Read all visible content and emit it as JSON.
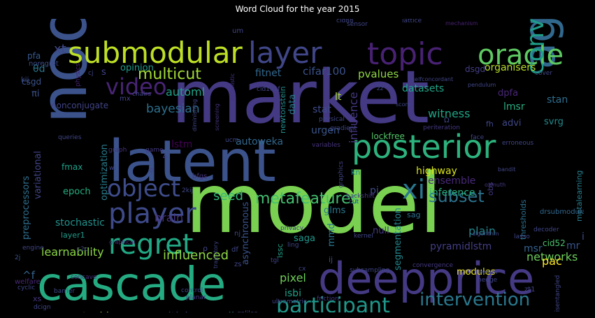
{
  "chart_data": {
    "type": "wordcloud",
    "title": "Word Cloud for the year 2015",
    "words": [
      {
        "text": "model",
        "color": "#7ad151"
      },
      {
        "text": "market",
        "color": "#443983"
      },
      {
        "text": "node",
        "color": "#3b528b"
      },
      {
        "text": "latent",
        "color": "#3b528b"
      },
      {
        "text": "cascade",
        "color": "#25ab82"
      },
      {
        "text": "deepprice",
        "color": "#443983"
      },
      {
        "text": "agent",
        "color": "#31688e"
      },
      {
        "text": "posterior",
        "color": "#2db27d"
      },
      {
        "text": "submodular",
        "color": "#bddf26"
      },
      {
        "text": "layer",
        "color": "#404688"
      },
      {
        "text": "topic",
        "color": "#482173"
      },
      {
        "text": "oracle",
        "color": "#5ec962"
      },
      {
        "text": "player",
        "color": "#3e4a89"
      },
      {
        "text": "regret",
        "color": "#22a884"
      },
      {
        "text": "object",
        "color": "#3e4c8a"
      },
      {
        "text": "video",
        "color": "#482475"
      },
      {
        "text": "xi",
        "color": "#2a768e"
      },
      {
        "text": "convex",
        "color": "#1f9e89"
      },
      {
        "text": "multicut",
        "color": "#a2da37"
      },
      {
        "text": "participant",
        "color": "#1f988b"
      },
      {
        "text": "intervention",
        "color": "#2a788e"
      },
      {
        "text": "metafeatures",
        "color": "#44bf70"
      },
      {
        "text": "subset",
        "color": "#2c728e"
      },
      {
        "text": "influenced",
        "color": "#8fd744"
      },
      {
        "text": "bayesian",
        "color": "#2c718e"
      },
      {
        "text": "automl",
        "color": "#1fa287"
      },
      {
        "text": "mdlstm",
        "color": "#26828e"
      },
      {
        "text": "criticism",
        "color": "#3b528b"
      },
      {
        "text": "autosklearn",
        "color": "#a5db36"
      },
      {
        "text": "learnability",
        "color": "#8bd646"
      },
      {
        "text": "networks",
        "color": "#6ccd5a"
      },
      {
        "text": "lstm",
        "color": "#440154"
      },
      {
        "text": "autoweka",
        "color": "#31688e"
      },
      {
        "text": "seed",
        "color": "#35b779"
      },
      {
        "text": "pixel",
        "color": "#6ece58"
      },
      {
        "text": "brain",
        "color": "#46337e"
      },
      {
        "text": "stochastic",
        "color": "#21918c"
      },
      {
        "text": "witness",
        "color": "#20a486"
      },
      {
        "text": "influence",
        "color": "#453781"
      },
      {
        "text": "datasets",
        "color": "#20a386"
      },
      {
        "text": "pvalues",
        "color": "#8fd744"
      },
      {
        "text": "organisers",
        "color": "#b8de29"
      },
      {
        "text": "cifar100",
        "color": "#3b528b"
      },
      {
        "text": "fitnet",
        "color": "#31688e"
      },
      {
        "text": "opinion",
        "color": "#1f9a8a"
      },
      {
        "text": "highway",
        "color": "#d8e219"
      },
      {
        "text": "ensemble",
        "color": "#482979"
      },
      {
        "text": "inference",
        "color": "#28ae80"
      },
      {
        "text": "plain",
        "color": "#25858e"
      },
      {
        "text": "pyramidlstm",
        "color": "#433e85"
      },
      {
        "text": "msr",
        "color": "#34618d"
      },
      {
        "text": "pac",
        "color": "#fde725"
      },
      {
        "text": "glms",
        "color": "#2a788e"
      },
      {
        "text": "saga",
        "color": "#1f968b"
      },
      {
        "text": "isbi",
        "color": "#1fa188"
      },
      {
        "text": "segmentation",
        "color": "#24878e"
      },
      {
        "text": "stat",
        "color": "#3e4c8a"
      },
      {
        "text": "urgen",
        "color": "#39568c"
      },
      {
        "text": "lmsr",
        "color": "#26ad81"
      },
      {
        "text": "stan",
        "color": "#2e6f8e"
      },
      {
        "text": "dpfa",
        "color": "#482677"
      },
      {
        "text": "advi",
        "color": "#3f4788"
      },
      {
        "text": "svrg",
        "color": "#238a8d"
      },
      {
        "text": "transform",
        "color": "#2d708e"
      },
      {
        "text": "metalearning",
        "color": "#277f8e"
      },
      {
        "text": "variational",
        "color": "#414487"
      },
      {
        "text": "preprocessors",
        "color": "#2e6e8e"
      },
      {
        "text": "optimization",
        "color": "#287d8e"
      },
      {
        "text": "epoch",
        "color": "#26ad81"
      },
      {
        "text": "fmax",
        "color": "#1fa088"
      },
      {
        "text": "asynchronous",
        "color": "#3a538b"
      },
      {
        "text": "newtonstein",
        "color": "#21908d"
      },
      {
        "text": "lockfree",
        "color": "#52c569"
      },
      {
        "text": "mmd",
        "color": "#2a768e"
      },
      {
        "text": "interactive",
        "color": "#3b528b"
      },
      {
        "text": "modules",
        "color": "#e5e419"
      },
      {
        "text": "thresholds",
        "color": "#2d708e"
      },
      {
        "text": "drsubmodular",
        "color": "#31688e"
      },
      {
        "text": "cid52",
        "color": "#4ac16d"
      },
      {
        "text": "layer1",
        "color": "#1e9b8a"
      },
      {
        "text": "null",
        "color": "#443983"
      },
      {
        "text": "pi",
        "color": "#3e4a89"
      },
      {
        "text": "fh",
        "color": "#3f4889"
      },
      {
        "text": "lt",
        "color": "#a8db34"
      },
      {
        "text": "xt",
        "color": "#3f4889"
      },
      {
        "text": "data",
        "color": "#2a788e"
      },
      {
        "text": "kn",
        "color": "#238a8d"
      },
      {
        "text": "ic",
        "color": "#3e4c8a"
      },
      {
        "text": "mr",
        "color": "#3a548c"
      },
      {
        "text": "obs",
        "color": "#443983"
      },
      {
        "text": "sag",
        "color": "#2d708e"
      },
      {
        "text": "issc",
        "color": "#1fa088"
      },
      {
        "text": "dsgd",
        "color": "#433e85"
      },
      {
        "text": "pfa",
        "color": "#38598c"
      },
      {
        "text": "csgd",
        "color": "#3a538b"
      },
      {
        "text": "noregret",
        "color": "#3e4c8a"
      },
      {
        "text": "nonconjugate",
        "color": "#414487"
      },
      {
        "text": "θd",
        "color": "#2a768e"
      },
      {
        "text": "πi",
        "color": "#3b528b"
      },
      {
        "text": "^f",
        "color": "#33638d"
      },
      {
        "text": "welfare",
        "color": "#482878"
      },
      {
        "text": "cyclic",
        "color": "#3f4889"
      },
      {
        "text": "xs",
        "color": "#453781"
      },
      {
        "text": "dcign",
        "color": "#404688"
      },
      {
        "text": "dpfm",
        "color": "#38598c"
      },
      {
        "text": "barrier",
        "color": "#3e4a89"
      },
      {
        "text": "concave",
        "color": "#472f7d"
      },
      {
        "text": "engine",
        "color": "#404688"
      },
      {
        "text": "2j",
        "color": "#3b528b"
      },
      {
        "text": "c2c",
        "color": "#404688"
      },
      {
        "text": "kij",
        "color": "#3e4c8a"
      },
      {
        "text": "cj",
        "color": "#414487"
      },
      {
        "text": "s",
        "color": "#404688"
      },
      {
        "text": "physics",
        "color": "#482475"
      },
      {
        "text": "queries",
        "color": "#404688"
      },
      {
        "text": "chairs",
        "color": "#404688"
      },
      {
        "text": "mx",
        "color": "#404688"
      },
      {
        "text": "cid101f",
        "color": "#404688"
      },
      {
        "text": "optimistic",
        "color": "#46337e"
      },
      {
        "text": "screening",
        "color": "#46337e"
      },
      {
        "text": "diminishing",
        "color": "#404688"
      },
      {
        "text": "ucm",
        "color": "#404688"
      },
      {
        "text": "graph",
        "color": "#46337e"
      },
      {
        "text": "game",
        "color": "#443983"
      },
      {
        "text": "bfgs",
        "color": "#46337e"
      },
      {
        "text": "2kij",
        "color": "#404688"
      },
      {
        "text": "wl",
        "color": "#404688"
      },
      {
        "text": "physical",
        "color": "#404688"
      },
      {
        "text": "gradient",
        "color": "#404688"
      },
      {
        "text": "variables",
        "color": "#46337e"
      },
      {
        "text": "graphics",
        "color": "#404688"
      },
      {
        "text": "backshift",
        "color": "#443983"
      },
      {
        "text": "cut",
        "color": "#404688"
      },
      {
        "text": "privacy",
        "color": "#443983"
      },
      {
        "text": "tgl",
        "color": "#404688"
      },
      {
        "text": "ling",
        "color": "#414487"
      },
      {
        "text": "kernel",
        "color": "#404688"
      },
      {
        "text": "subsampling",
        "color": "#404688"
      },
      {
        "text": "convergence",
        "color": "#443983"
      },
      {
        "text": "trajectory",
        "color": "#404688"
      },
      {
        "text": "graphical",
        "color": "#472d7b"
      },
      {
        "text": "zs",
        "color": "#404688"
      },
      {
        "text": "df",
        "color": "#404688"
      },
      {
        "text": "nj",
        "color": "#404688"
      },
      {
        "text": "ij",
        "color": "#3e4a89"
      },
      {
        "text": "control",
        "color": "#404688"
      },
      {
        "text": "planar",
        "color": "#443983"
      },
      {
        "text": "ultrametric",
        "color": "#404688"
      },
      {
        "text": "friction",
        "color": "#443983"
      },
      {
        "text": "cid88",
        "color": "#404688"
      },
      {
        "text": "lattice",
        "color": "#404688"
      },
      {
        "text": "mechanism",
        "color": "#482173"
      },
      {
        "text": "galileo",
        "color": "#404688"
      },
      {
        "text": "nonleaf",
        "color": "#404688"
      },
      {
        "text": "hessian",
        "color": "#404688"
      },
      {
        "text": "encoder",
        "color": "#404688"
      },
      {
        "text": "decoder",
        "color": "#404688"
      },
      {
        "text": "disentangled",
        "color": "#404688"
      },
      {
        "text": "newton",
        "color": "#404688"
      },
      {
        "text": "hedge",
        "color": "#404688"
      },
      {
        "text": "zt1",
        "color": "#404688"
      },
      {
        "text": "lasso",
        "color": "#404688"
      },
      {
        "text": "algorithm",
        "color": "#404688"
      },
      {
        "text": "ozmuth",
        "color": "#443983"
      },
      {
        "text": "bandit",
        "color": "#404688"
      },
      {
        "text": "face",
        "color": "#404688"
      },
      {
        "text": "erroneous",
        "color": "#404688"
      },
      {
        "text": "periteration",
        "color": "#443983"
      },
      {
        "text": "pendulum",
        "color": "#404688"
      },
      {
        "text": "cover",
        "color": "#404688"
      },
      {
        "text": "selfconcordant",
        "color": "#404688"
      },
      {
        "text": "sensor",
        "color": "#404688"
      },
      {
        "text": "saha",
        "color": "#404688"
      },
      {
        "text": "score",
        "color": "#404688"
      },
      {
        "text": "um",
        "color": "#404688"
      },
      {
        "text": "cx",
        "color": "#404688"
      },
      {
        "text": "zz",
        "color": "#404688"
      },
      {
        "text": "Δ",
        "color": "#404688"
      },
      {
        "text": "φ",
        "color": "#404688"
      },
      {
        "text": "ρ",
        "color": "#404688"
      },
      {
        "text": "Ω",
        "color": "#404688"
      }
    ]
  }
}
